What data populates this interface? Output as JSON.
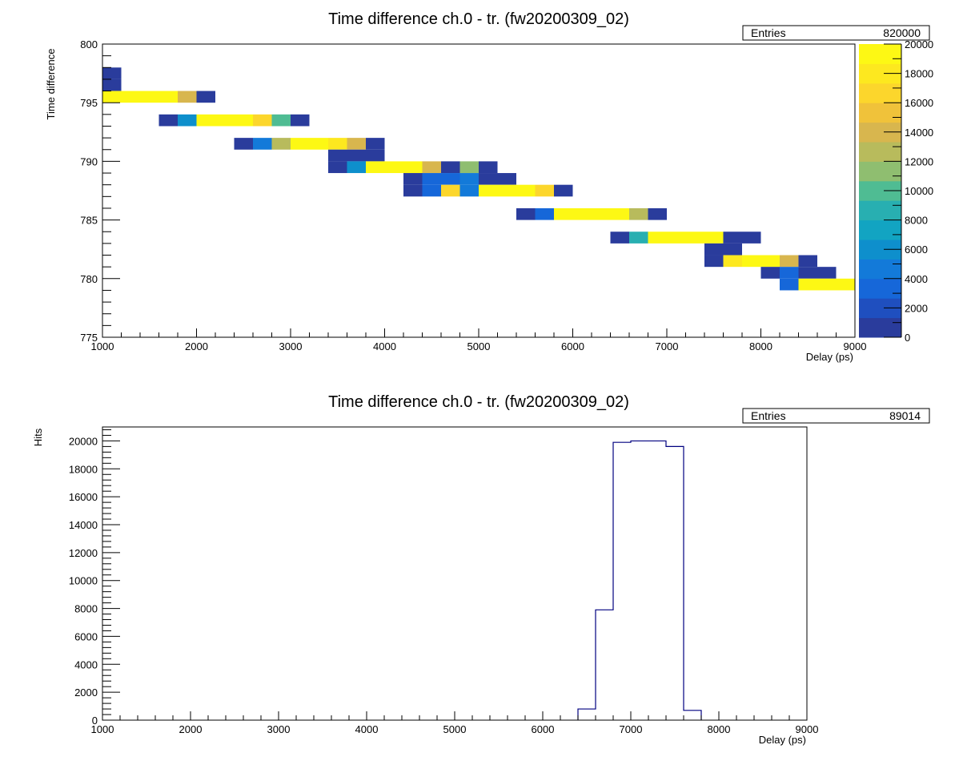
{
  "chart_data": [
    {
      "type": "heatmap",
      "title": "Time difference ch.0 - tr. (fw20200309_02)",
      "xlabel": "Delay (ps)",
      "ylabel": "Time difference",
      "xlim": [
        1000,
        9000
      ],
      "ylim": [
        775,
        800
      ],
      "xticks": [
        "1000",
        "2000",
        "3000",
        "4000",
        "5000",
        "6000",
        "7000",
        "8000",
        "9000"
      ],
      "yticks": [
        "775",
        "780",
        "785",
        "790",
        "795",
        "800"
      ],
      "stats": {
        "label": "Entries",
        "value": "820000"
      },
      "colorbar": {
        "zlim": [
          0,
          20000
        ],
        "ticks": [
          "0",
          "2000",
          "4000",
          "6000",
          "8000",
          "10000",
          "12000",
          "14000",
          "16000",
          "18000",
          "20000"
        ],
        "palette": [
          "#2a3c9c",
          "#1f4fbf",
          "#1667d9",
          "#137ad9",
          "#0e8fcc",
          "#12a4c2",
          "#28afb1",
          "#4fbc93",
          "#8fbe70",
          "#b8bb5c",
          "#d8b64e",
          "#f0c23a",
          "#fcd62c",
          "#fde81f",
          "#fdf814"
        ]
      },
      "grid": false,
      "x_bin_width": 200,
      "y_bin_width": 1,
      "cells": [
        {
          "x": 1000,
          "y": 797,
          "v": 1000
        },
        {
          "x": 1000,
          "y": 796,
          "v": 1000
        },
        {
          "x": 1000,
          "y": 795,
          "v": 20000
        },
        {
          "x": 1200,
          "y": 795,
          "v": 20000
        },
        {
          "x": 1400,
          "y": 795,
          "v": 20000
        },
        {
          "x": 1600,
          "y": 795,
          "v": 20000
        },
        {
          "x": 1800,
          "y": 795,
          "v": 14500
        },
        {
          "x": 2000,
          "y": 795,
          "v": 1000
        },
        {
          "x": 1600,
          "y": 793,
          "v": 1000
        },
        {
          "x": 1800,
          "y": 793,
          "v": 6500
        },
        {
          "x": 2000,
          "y": 793,
          "v": 20000
        },
        {
          "x": 2200,
          "y": 793,
          "v": 20000
        },
        {
          "x": 2400,
          "y": 793,
          "v": 20000
        },
        {
          "x": 2600,
          "y": 793,
          "v": 16500
        },
        {
          "x": 2800,
          "y": 793,
          "v": 9500
        },
        {
          "x": 3000,
          "y": 793,
          "v": 1000
        },
        {
          "x": 2400,
          "y": 791,
          "v": 1000
        },
        {
          "x": 2600,
          "y": 791,
          "v": 4000
        },
        {
          "x": 2800,
          "y": 791,
          "v": 12000
        },
        {
          "x": 3000,
          "y": 791,
          "v": 20000
        },
        {
          "x": 3200,
          "y": 791,
          "v": 20000
        },
        {
          "x": 3400,
          "y": 791,
          "v": 18500
        },
        {
          "x": 3600,
          "y": 791,
          "v": 14500
        },
        {
          "x": 3800,
          "y": 791,
          "v": 1000
        },
        {
          "x": 3400,
          "y": 790,
          "v": 1000
        },
        {
          "x": 3600,
          "y": 790,
          "v": 1000
        },
        {
          "x": 3800,
          "y": 790,
          "v": 1000
        },
        {
          "x": 3400,
          "y": 789,
          "v": 1000
        },
        {
          "x": 3600,
          "y": 789,
          "v": 6500
        },
        {
          "x": 3800,
          "y": 789,
          "v": 20000
        },
        {
          "x": 4000,
          "y": 789,
          "v": 20000
        },
        {
          "x": 4200,
          "y": 789,
          "v": 20000
        },
        {
          "x": 4400,
          "y": 789,
          "v": 14500
        },
        {
          "x": 4600,
          "y": 789,
          "v": 1000
        },
        {
          "x": 4800,
          "y": 789,
          "v": 11500
        },
        {
          "x": 5000,
          "y": 789,
          "v": 1000
        },
        {
          "x": 4200,
          "y": 788,
          "v": 1000
        },
        {
          "x": 4400,
          "y": 788,
          "v": 3000
        },
        {
          "x": 4600,
          "y": 788,
          "v": 3000
        },
        {
          "x": 4800,
          "y": 788,
          "v": 5000
        },
        {
          "x": 5000,
          "y": 788,
          "v": 1000
        },
        {
          "x": 5200,
          "y": 788,
          "v": 1000
        },
        {
          "x": 4200,
          "y": 787,
          "v": 1000
        },
        {
          "x": 4400,
          "y": 787,
          "v": 3500
        },
        {
          "x": 4600,
          "y": 787,
          "v": 17000
        },
        {
          "x": 4800,
          "y": 787,
          "v": 5000
        },
        {
          "x": 5000,
          "y": 787,
          "v": 20000
        },
        {
          "x": 5200,
          "y": 787,
          "v": 20000
        },
        {
          "x": 5400,
          "y": 787,
          "v": 20000
        },
        {
          "x": 5600,
          "y": 787,
          "v": 17000
        },
        {
          "x": 5800,
          "y": 787,
          "v": 1000
        },
        {
          "x": 5400,
          "y": 785,
          "v": 1000
        },
        {
          "x": 5600,
          "y": 785,
          "v": 3500
        },
        {
          "x": 5800,
          "y": 785,
          "v": 20000
        },
        {
          "x": 6000,
          "y": 785,
          "v": 20000
        },
        {
          "x": 6200,
          "y": 785,
          "v": 20000
        },
        {
          "x": 6400,
          "y": 785,
          "v": 20000
        },
        {
          "x": 6600,
          "y": 785,
          "v": 13000
        },
        {
          "x": 6800,
          "y": 785,
          "v": 1000
        },
        {
          "x": 6400,
          "y": 783,
          "v": 1000
        },
        {
          "x": 6600,
          "y": 783,
          "v": 8000
        },
        {
          "x": 6800,
          "y": 783,
          "v": 20000
        },
        {
          "x": 7000,
          "y": 783,
          "v": 20000
        },
        {
          "x": 7200,
          "y": 783,
          "v": 20000
        },
        {
          "x": 7400,
          "y": 783,
          "v": 20000
        },
        {
          "x": 7600,
          "y": 783,
          "v": 1000
        },
        {
          "x": 7800,
          "y": 783,
          "v": 1000
        },
        {
          "x": 7400,
          "y": 782,
          "v": 1000
        },
        {
          "x": 7600,
          "y": 782,
          "v": 1000
        },
        {
          "x": 7400,
          "y": 781,
          "v": 1000
        },
        {
          "x": 7600,
          "y": 781,
          "v": 18500
        },
        {
          "x": 7800,
          "y": 781,
          "v": 20000
        },
        {
          "x": 8000,
          "y": 781,
          "v": 20000
        },
        {
          "x": 8200,
          "y": 781,
          "v": 14500
        },
        {
          "x": 8400,
          "y": 781,
          "v": 1000
        },
        {
          "x": 8000,
          "y": 780,
          "v": 1000
        },
        {
          "x": 8200,
          "y": 780,
          "v": 3500
        },
        {
          "x": 8400,
          "y": 780,
          "v": 1000
        },
        {
          "x": 8600,
          "y": 780,
          "v": 1000
        },
        {
          "x": 8200,
          "y": 779,
          "v": 3500
        },
        {
          "x": 8400,
          "y": 779,
          "v": 20000
        },
        {
          "x": 8600,
          "y": 779,
          "v": 20000
        },
        {
          "x": 8800,
          "y": 779,
          "v": 20000
        }
      ]
    },
    {
      "type": "bar",
      "title": "Time difference ch.0 - tr. (fw20200309_02)",
      "xlabel": "Delay (ps)",
      "ylabel": "Hits",
      "xlim": [
        1000,
        9000
      ],
      "ylim": [
        0,
        21000
      ],
      "xticks": [
        "1000",
        "2000",
        "3000",
        "4000",
        "5000",
        "6000",
        "7000",
        "8000",
        "9000"
      ],
      "yticks": [
        "0",
        "2000",
        "4000",
        "6000",
        "8000",
        "10000",
        "12000",
        "14000",
        "16000",
        "18000",
        "20000"
      ],
      "stats": {
        "label": "Entries",
        "value": "89014"
      },
      "grid": false,
      "line_color": "#000080",
      "bin_width": 200,
      "x": [
        6400,
        6600,
        6800,
        7000,
        7200,
        7400,
        7600
      ],
      "values": [
        800,
        7900,
        19900,
        20000,
        20000,
        19600,
        700
      ]
    }
  ]
}
